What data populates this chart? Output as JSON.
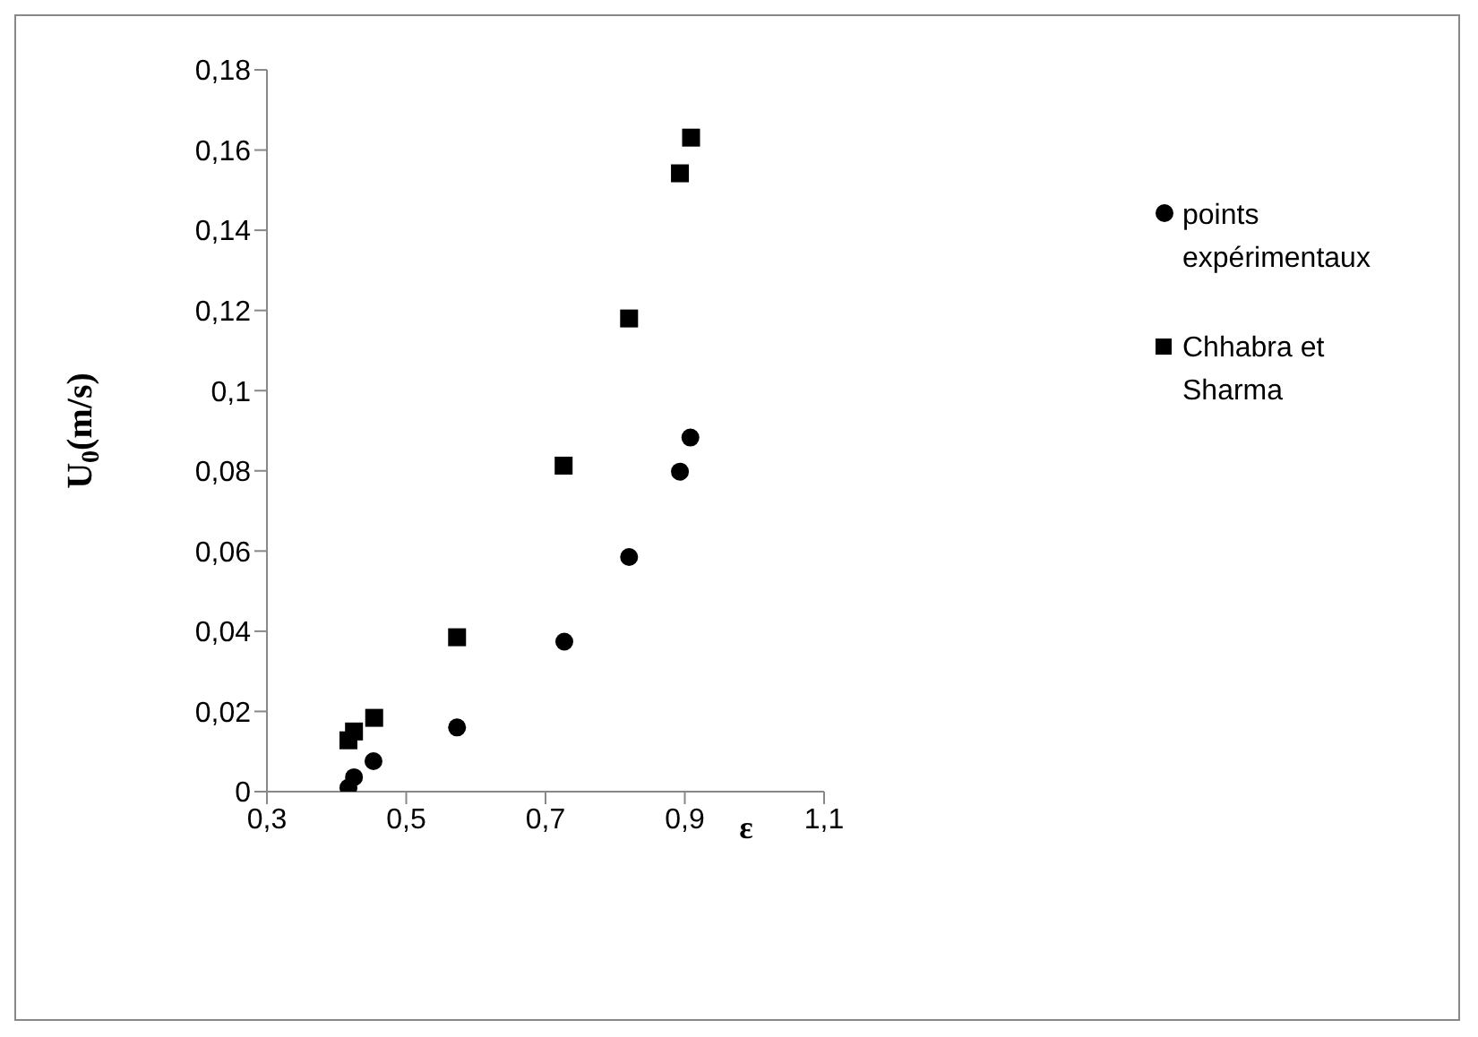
{
  "chart_data": {
    "type": "scatter",
    "xlabel": "ε",
    "ylabel": "U$_{0}$(m/s)",
    "xlim": [
      0.3,
      1.1
    ],
    "xticks": [
      {
        "value": 0.3,
        "label": "0,3"
      },
      {
        "value": 0.5,
        "label": "0,5"
      },
      {
        "value": 0.7,
        "label": "0,7"
      },
      {
        "value": 0.9,
        "label": "0,9"
      },
      {
        "value": 1.1,
        "label": "1,1"
      }
    ],
    "ylim": [
      0,
      0.18
    ],
    "yticks": [
      {
        "value": 0,
        "label": "0"
      },
      {
        "value": 0.02,
        "label": "0,02"
      },
      {
        "value": 0.04,
        "label": "0,04"
      },
      {
        "value": 0.06,
        "label": "0,06"
      },
      {
        "value": 0.08,
        "label": "0,08"
      },
      {
        "value": 0.1,
        "label": "0,1"
      },
      {
        "value": 0.12,
        "label": "0,12"
      },
      {
        "value": 0.14,
        "label": "0,14"
      },
      {
        "value": 0.16,
        "label": "0,16"
      },
      {
        "value": 0.18,
        "label": "0,18"
      }
    ],
    "grid": false,
    "legend": "right",
    "series": [
      {
        "name": "points expérimentaux",
        "color": "#000000",
        "marker": "circle",
        "x": [
          0.417,
          0.425,
          0.453,
          0.573,
          0.727,
          0.82,
          0.893,
          0.908
        ],
        "values": [
          0.001,
          0.0036,
          0.0076,
          0.016,
          0.0374,
          0.0585,
          0.0798,
          0.0883
        ]
      },
      {
        "name": "Chhabra et Sharma",
        "color": "#000000",
        "marker": "square",
        "x": [
          0.417,
          0.425,
          0.454,
          0.573,
          0.726,
          0.82,
          0.893,
          0.909
        ],
        "values": [
          0.0128,
          0.015,
          0.0184,
          0.0385,
          0.0813,
          0.118,
          0.1542,
          0.1631
        ]
      }
    ]
  }
}
